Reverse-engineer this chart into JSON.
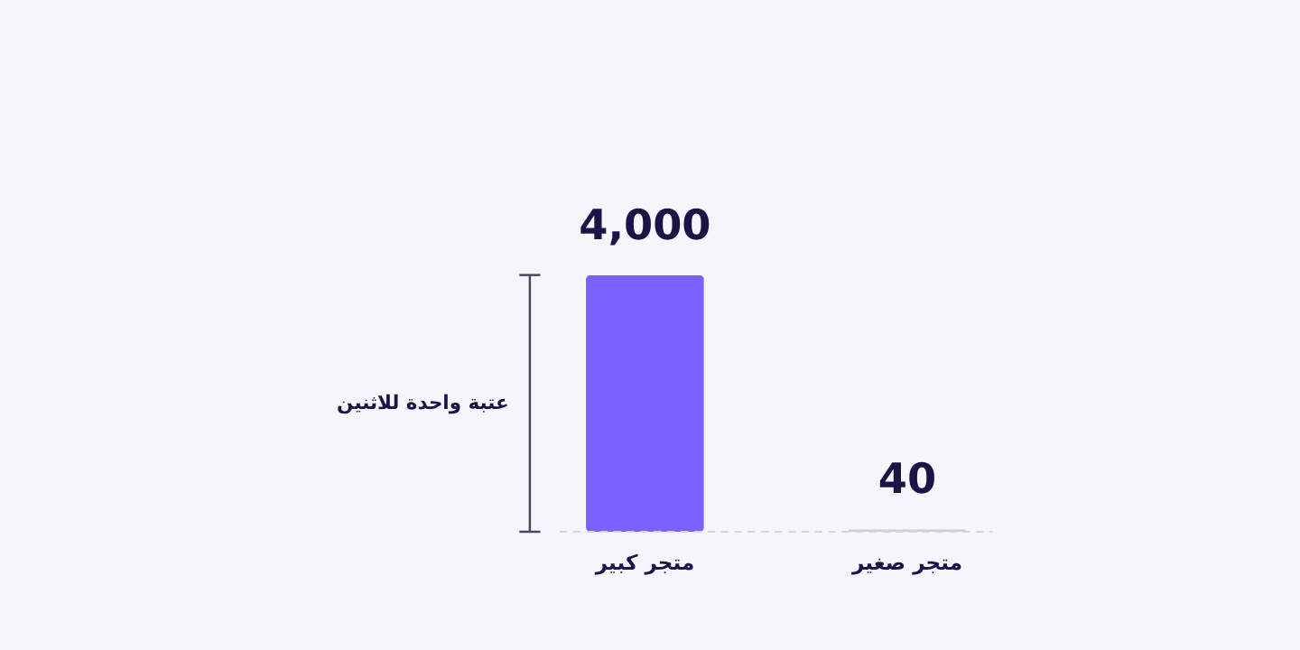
{
  "chart_data": {
    "type": "bar",
    "categories": [
      "متجر كبير",
      "متجر صغير"
    ],
    "values": [
      4000,
      40
    ],
    "colors": [
      "#7b61ff",
      "#cccadb"
    ],
    "value_labels": [
      "4,000",
      "40"
    ],
    "ref_lines": [
      {
        "axis": "y",
        "value": 0,
        "line_style": "dashed",
        "color": "#d6d4e4"
      }
    ],
    "annotations": [
      "عتبة واحدة للاثنين"
    ]
  }
}
